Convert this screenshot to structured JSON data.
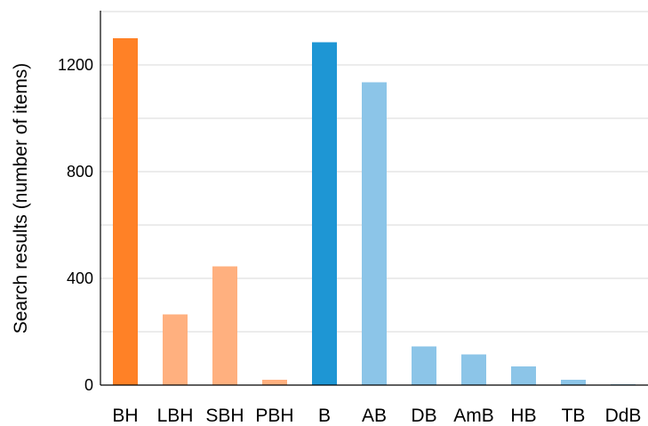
{
  "chart_data": {
    "type": "bar",
    "title": "",
    "xlabel": "",
    "ylabel": "Search results (number of items)",
    "categories": [
      "BH",
      "LBH",
      "SBH",
      "PBH",
      "B",
      "AB",
      "DB",
      "AmB",
      "HB",
      "TB",
      "DdB"
    ],
    "values": [
      1300,
      265,
      445,
      20,
      1285,
      1135,
      145,
      115,
      70,
      20,
      3
    ],
    "colors": [
      "#ff8126",
      "#ffb07f",
      "#ffb07f",
      "#ffb07f",
      "#1e96d4",
      "#8cc5e8",
      "#8cc5e8",
      "#8cc5e8",
      "#8cc5e8",
      "#8cc5e8",
      "#8cc5e8"
    ],
    "ylim": [
      0,
      1400
    ],
    "yticks": [
      0,
      400,
      800,
      1200
    ],
    "grid": true,
    "legend": "none"
  }
}
